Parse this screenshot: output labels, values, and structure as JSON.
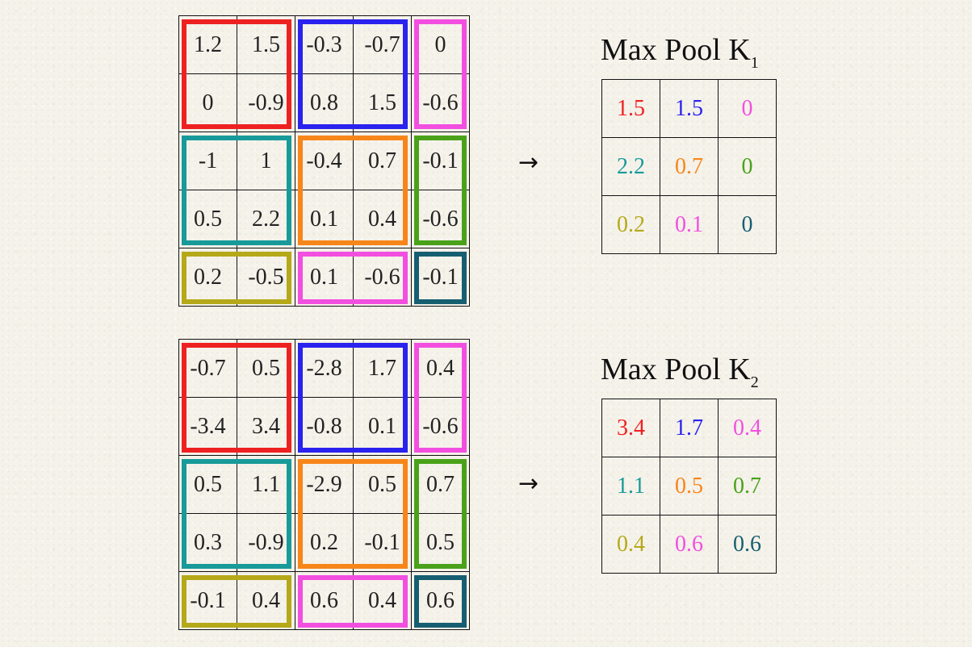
{
  "colors": {
    "red": "#ee2121",
    "blue": "#2a22ee",
    "pink": "#f24fe0",
    "teal": "#189a9a",
    "orange": "#f7861a",
    "green": "#4aa21a",
    "olive": "#b5a91a",
    "darkteal": "#165f70"
  },
  "arrow": "→",
  "examples": [
    {
      "title": "Max Pool K",
      "subscript": "1",
      "input": [
        [
          "1.2",
          "1.5",
          "-0.3",
          "-0.7",
          "0"
        ],
        [
          "0",
          "-0.9",
          "0.8",
          "1.5",
          "-0.6"
        ],
        [
          "-1",
          "1",
          "-0.4",
          "0.7",
          "-0.1"
        ],
        [
          "0.5",
          "2.2",
          "0.1",
          "0.4",
          "-0.6"
        ],
        [
          "0.2",
          "-0.5",
          "0.1",
          "-0.6",
          "-0.1"
        ]
      ],
      "output": [
        [
          "1.5",
          "1.5",
          "0"
        ],
        [
          "2.2",
          "0.7",
          "0"
        ],
        [
          "0.2",
          "0.1",
          "0"
        ]
      ]
    },
    {
      "title": "Max Pool K",
      "subscript": "2",
      "input": [
        [
          "-0.7",
          "0.5",
          "-2.8",
          "1.7",
          "0.4"
        ],
        [
          "-3.4",
          "3.4",
          "-0.8",
          "0.1",
          "-0.6"
        ],
        [
          "0.5",
          "1.1",
          "-2.9",
          "0.5",
          "0.7"
        ],
        [
          "0.3",
          "-0.9",
          "0.2",
          "-0.1",
          "0.5"
        ],
        [
          "-0.1",
          "0.4",
          "0.6",
          "0.4",
          "0.6"
        ]
      ],
      "output": [
        [
          "3.4",
          "1.7",
          "0.4"
        ],
        [
          "1.1",
          "0.5",
          "0.7"
        ],
        [
          "0.4",
          "0.6",
          "0.6"
        ]
      ]
    }
  ]
}
